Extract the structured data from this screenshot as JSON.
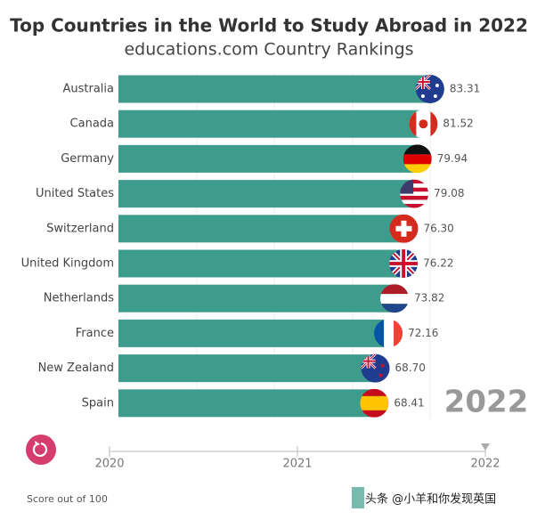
{
  "chart_data": {
    "type": "bar",
    "orientation": "horizontal",
    "title": "Top Countries in the World to Study Abroad in 2022",
    "subtitle": "educations.com Country Rankings",
    "categories": [
      "Australia",
      "Canada",
      "Germany",
      "United States",
      "Switzerland",
      "United Kingdom",
      "Netherlands",
      "France",
      "New Zealand",
      "Spain"
    ],
    "values": [
      83.31,
      81.52,
      79.94,
      79.08,
      76.3,
      76.22,
      73.82,
      72.16,
      68.7,
      68.41
    ],
    "value_labels": [
      "83.31",
      "81.52",
      "79.94",
      "79.08",
      "76.30",
      "76.22",
      "73.82",
      "72.16",
      "68.70",
      "68.41"
    ],
    "color": "#3d9c8c",
    "xlim": [
      0,
      90
    ],
    "year": 2022,
    "timeline_lim": [
      2020,
      2022
    ],
    "timeline_ticks": [
      2020,
      2021,
      2022
    ],
    "footnote": "Score out of 100",
    "watermark": "头条 @小羊和你发现英国"
  }
}
